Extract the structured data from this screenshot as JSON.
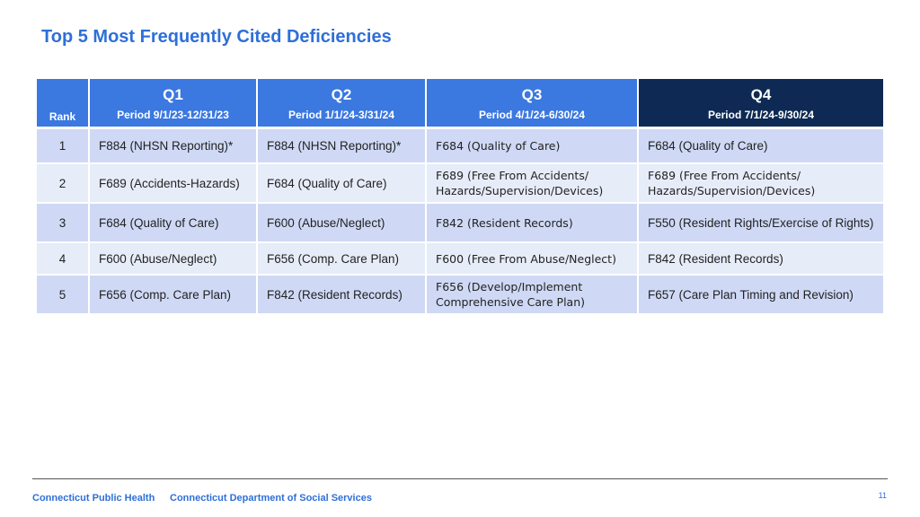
{
  "title": "Top 5 Most Frequently Cited Deficiencies",
  "header": {
    "rank": "Rank",
    "quarters": [
      {
        "label": "Q1",
        "period": "Period 9/1/23-12/31/23"
      },
      {
        "label": "Q2",
        "period": "Period 1/1/24-3/31/24"
      },
      {
        "label": "Q3",
        "period": "Period 4/1/24-6/30/24"
      },
      {
        "label": "Q4",
        "period": "Period 7/1/24-9/30/24"
      }
    ]
  },
  "rows": [
    {
      "rank": "1",
      "q1": "F884 (NHSN Reporting)*",
      "q2": "F884 (NHSN Reporting)*",
      "q3": "F684 (Quality of Care)",
      "q4": "F684 (Quality of Care)"
    },
    {
      "rank": "2",
      "q1": "F689 (Accidents-Hazards)",
      "q2": "F684 (Quality of Care)",
      "q3": "F689 (Free From Accidents/ Hazards/Supervision/Devices)",
      "q4": "F689 (Free From Accidents/ Hazards/Supervision/Devices)"
    },
    {
      "rank": "3",
      "q1": "F684 (Quality of Care)",
      "q2": "F600 (Abuse/Neglect)",
      "q3": "F842 (Resident Records)",
      "q4": "F550 (Resident Rights/Exercise of Rights)"
    },
    {
      "rank": "4",
      "q1": "F600 (Abuse/Neglect)",
      "q2": "F656 (Comp. Care Plan)",
      "q3": "F600 (Free From Abuse/Neglect)",
      "q4": "F842 (Resident Records)"
    },
    {
      "rank": "5",
      "q1": "F656 (Comp. Care Plan)",
      "q2": "F842 (Resident Records)",
      "q3": "F656 (Develop/Implement Comprehensive Care Plan)",
      "q4": "F657 (Care Plan Timing and Revision)"
    }
  ],
  "footer": {
    "org1": "Connecticut Public Health",
    "org2": "Connecticut Department of Social Services",
    "page_number": "11"
  },
  "colors": {
    "title": "#2e6fd8",
    "header": "#3b78e0",
    "header_q4": "#0e2a54",
    "row_odd": "#cfd9f5",
    "row_even": "#e7ecf9"
  }
}
